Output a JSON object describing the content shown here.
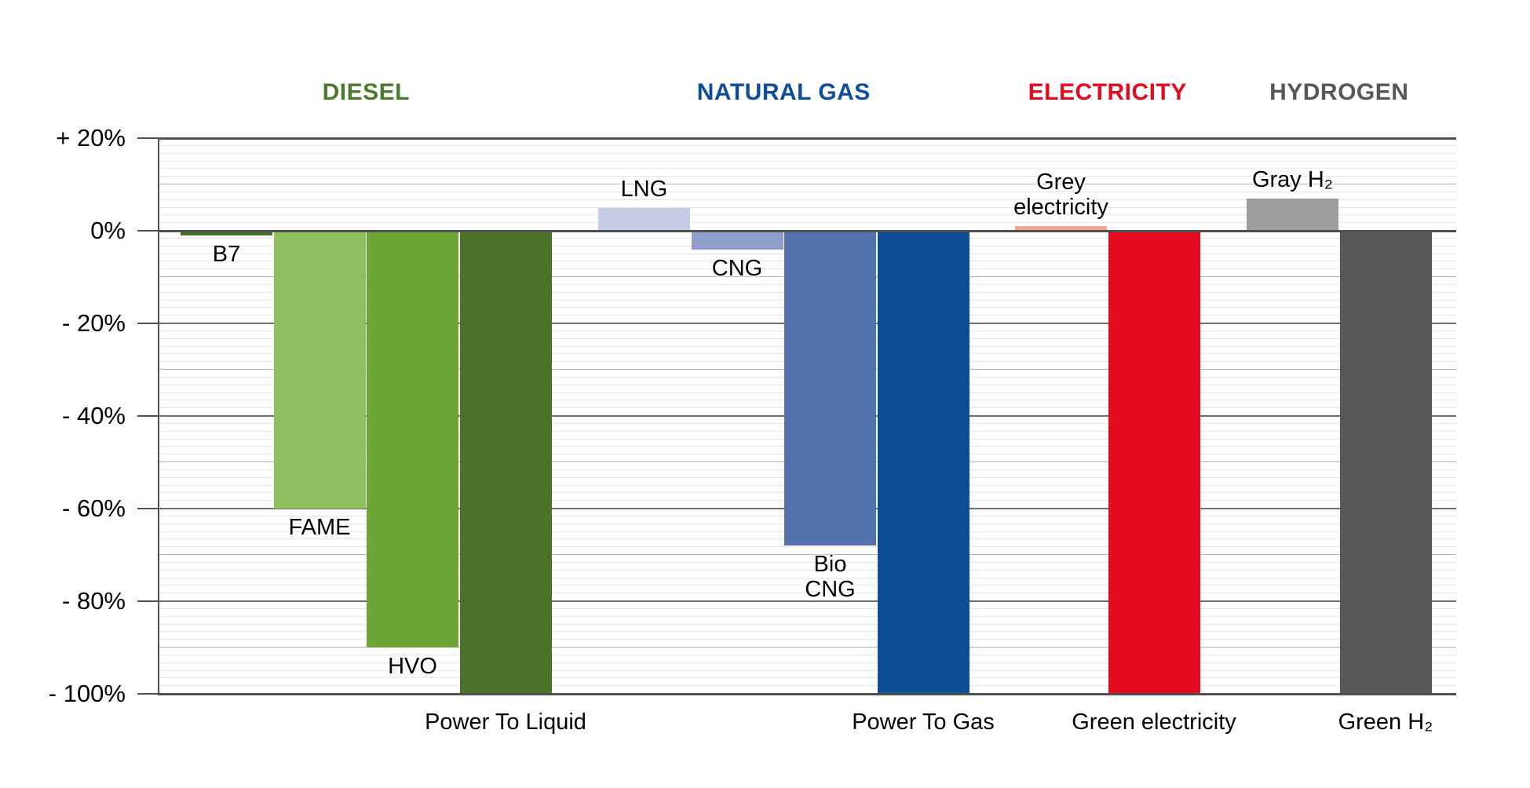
{
  "chart_data": {
    "type": "bar",
    "title": "",
    "xlabel": "",
    "ylabel": "",
    "unit": "%",
    "ylim": [
      -100,
      20
    ],
    "grid": "on",
    "legend": "none",
    "yticks": [
      {
        "label": "+ 20%",
        "value": 20
      },
      {
        "label": "0%",
        "value": 0
      },
      {
        "label": "- 20%",
        "value": -20
      },
      {
        "label": "- 40%",
        "value": -40
      },
      {
        "label": "- 60%",
        "value": -60
      },
      {
        "label": "- 80%",
        "value": -80
      },
      {
        "label": "- 100%",
        "value": -100
      }
    ],
    "groups": [
      {
        "name": "DIESEL",
        "color": "#4a7a2e",
        "bars": [
          {
            "label": "B7",
            "value": -1,
            "color": "#467025",
            "label_pos": "below"
          },
          {
            "label": "FAME",
            "value": -60,
            "color": "#8ec05f",
            "label_pos": "below"
          },
          {
            "label": "HVO",
            "value": -90,
            "color": "#6ba637",
            "label_pos": "below"
          },
          {
            "label": "Power To Liquid",
            "value": -100,
            "color": "#4a7329",
            "label_pos": "bottom"
          }
        ]
      },
      {
        "name": "NATURAL GAS",
        "color": "#0d4e9a",
        "bars": [
          {
            "label": "LNG",
            "value": 5,
            "color": "#c7cce6",
            "label_pos": "above"
          },
          {
            "label": "CNG",
            "value": -4,
            "color": "#8f9dcb",
            "label_pos": "below"
          },
          {
            "label": "Bio\nCNG",
            "value": -68,
            "color": "#5472ae",
            "label_pos": "below"
          },
          {
            "label": "Power To Gas",
            "value": -100,
            "color": "#0b4d97",
            "label_pos": "bottom"
          }
        ]
      },
      {
        "name": "ELECTRICITY",
        "color": "#e30b1d",
        "bars": [
          {
            "label": "Grey\nelectricity",
            "value": 1,
            "color": "#f2a68f",
            "label_pos": "above"
          },
          {
            "label": "Green electricity",
            "value": -100,
            "color": "#e30b1d",
            "label_pos": "bottom"
          }
        ]
      },
      {
        "name": "HYDROGEN",
        "color": "#575756",
        "bars": [
          {
            "label": "Gray H₂",
            "value": 7,
            "color": "#9d9d9c",
            "label_pos": "above"
          },
          {
            "label": "Green H₂",
            "value": -100,
            "color": "#575756",
            "label_pos": "bottom"
          }
        ]
      }
    ]
  }
}
